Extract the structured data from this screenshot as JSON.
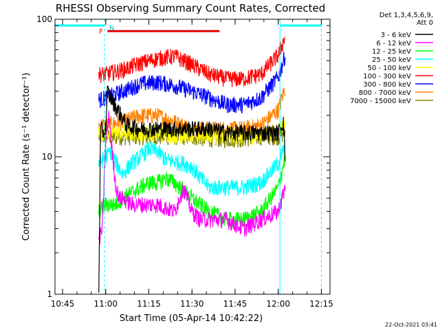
{
  "chart_data": {
    "type": "line",
    "title": "RHESSI Observing Summary Count Rates, Corrected",
    "xlabel": "Start Time (05-Apr-14 10:42:22)",
    "ylabel": "Corrected Count Rate (s⁻¹ detector⁻¹)",
    "yscale": "log",
    "xlim": [
      10.7061,
      12.3
    ],
    "ylim": [
      1,
      100
    ],
    "x_ticks": [
      {
        "v": 10.75,
        "label": "10:45"
      },
      {
        "v": 11.0,
        "label": "11:00"
      },
      {
        "v": 11.25,
        "label": "11:15"
      },
      {
        "v": 11.5,
        "label": "11:30"
      },
      {
        "v": 11.75,
        "label": "11:45"
      },
      {
        "v": 12.0,
        "label": "12:00"
      },
      {
        "v": 12.25,
        "label": "12:15"
      }
    ],
    "y_ticks": [
      {
        "v": 1,
        "label": "1"
      },
      {
        "v": 10,
        "label": "10"
      },
      {
        "v": 100,
        "label": "100"
      }
    ],
    "legend_header": [
      "Det 1,3,4,5,6,9,",
      "Att 0"
    ],
    "legend_position": "right",
    "series": [
      {
        "name": "3 - 6 keV",
        "color": "#000000",
        "x": [
          10.96,
          10.97,
          10.99,
          11.0,
          11.01,
          11.03,
          11.05,
          11.08,
          11.12,
          11.2,
          11.3,
          11.4,
          11.5,
          11.6,
          11.7,
          11.8,
          11.9,
          11.95,
          12.0,
          12.03,
          12.04
        ],
        "y": [
          1,
          16,
          15,
          16,
          30,
          27,
          24,
          21,
          17,
          16,
          16,
          16,
          16,
          16,
          15,
          15,
          15,
          15,
          15,
          18,
          10
        ]
      },
      {
        "name": "6 - 12 keV",
        "color": "#ff00ff",
        "x": [
          10.96,
          10.98,
          11.0,
          11.02,
          11.04,
          11.06,
          11.08,
          11.1,
          11.15,
          11.2,
          11.3,
          11.4,
          11.45,
          11.5,
          11.55,
          11.6,
          11.7,
          11.8,
          11.9,
          12.0,
          12.04
        ],
        "y": [
          2.5,
          3,
          13,
          20,
          10,
          6,
          5,
          5,
          4.5,
          4.5,
          4.5,
          4,
          6,
          4,
          3.5,
          3.5,
          3.5,
          3,
          3.5,
          4,
          6
        ]
      },
      {
        "name": "12 - 25 keV",
        "color": "#00ff00",
        "x": [
          10.96,
          11.0,
          11.05,
          11.1,
          11.15,
          11.2,
          11.25,
          11.3,
          11.35,
          11.4,
          11.5,
          11.6,
          11.7,
          11.8,
          11.9,
          12.0,
          12.04
        ],
        "y": [
          4,
          4.5,
          4.5,
          5,
          5.5,
          6,
          6.5,
          6.5,
          7,
          6.5,
          5,
          4,
          3.5,
          3.5,
          4,
          6,
          10
        ]
      },
      {
        "name": "25 - 50 keV",
        "color": "#00ffff",
        "x": [
          10.96,
          11.0,
          11.03,
          11.06,
          11.1,
          11.15,
          11.2,
          11.25,
          11.3,
          11.35,
          11.45,
          11.5,
          11.55,
          11.6,
          11.7,
          11.8,
          11.9,
          12.0,
          12.04
        ],
        "y": [
          9,
          10,
          11,
          9,
          7.5,
          9,
          10,
          11.5,
          11,
          9.5,
          9,
          8.5,
          7,
          6,
          6,
          6,
          6.5,
          9,
          12
        ]
      },
      {
        "name": "50 - 100 keV",
        "color": "#ffff00",
        "x": [
          10.96,
          11.0,
          11.1,
          11.2,
          11.3,
          11.4,
          11.5,
          11.6,
          11.7,
          11.8,
          11.9,
          12.0,
          12.04
        ],
        "y": [
          15,
          15,
          15,
          15,
          15,
          14.5,
          14.5,
          14.5,
          14.5,
          14,
          14.5,
          15.5,
          18
        ]
      },
      {
        "name": "100 - 300 keV",
        "color": "#ff0000",
        "x": [
          10.96,
          11.0,
          11.1,
          11.2,
          11.3,
          11.4,
          11.5,
          11.6,
          11.7,
          11.8,
          11.9,
          12.0,
          12.04
        ],
        "y": [
          40,
          40,
          43,
          48,
          52,
          54,
          47,
          40,
          37,
          37,
          40,
          55,
          75
        ]
      },
      {
        "name": "300 - 800 keV",
        "color": "#0000ff",
        "x": [
          10.96,
          11.0,
          11.1,
          11.2,
          11.3,
          11.4,
          11.5,
          11.6,
          11.7,
          11.8,
          11.9,
          12.0,
          12.04
        ],
        "y": [
          26,
          27,
          30,
          34,
          35,
          33,
          30,
          27,
          24,
          24,
          27,
          38,
          55
        ]
      },
      {
        "name": "800 - 7000 keV",
        "color": "#ff8000",
        "x": [
          10.96,
          11.0,
          11.1,
          11.2,
          11.3,
          11.4,
          11.5,
          11.6,
          11.7,
          11.8,
          11.9,
          12.0,
          12.04
        ],
        "y": [
          17,
          17,
          18,
          20,
          20,
          18,
          16,
          16,
          16,
          16,
          17,
          22,
          32
        ]
      },
      {
        "name": "7000 - 15000 keV",
        "color": "#808000",
        "x": [
          10.96,
          11.0,
          11.1,
          11.2,
          11.3,
          11.4,
          11.5,
          11.6,
          11.7,
          11.8,
          11.9,
          12.0,
          12.04
        ],
        "y": [
          14,
          14,
          14,
          14,
          14,
          14,
          14,
          13.5,
          13.5,
          13.5,
          14,
          14,
          15
        ]
      }
    ],
    "annotations": {
      "orbit_night_segments": [
        {
          "x": [
            10.7061,
            10.993
          ],
          "y": 90,
          "color": "#00ffff"
        },
        {
          "x": [
            12.01,
            12.25
          ],
          "y": 90,
          "color": "#00ffff"
        }
      ],
      "vertical_dashed_lines": [
        {
          "x": 10.993,
          "color": "#00ffff"
        },
        {
          "x": 12.25,
          "color": "#00ffff"
        }
      ],
      "vertical_solid_lines": [
        {
          "x": 12.01,
          "color": "#00ffff"
        }
      ],
      "flare_bar": {
        "label": "F",
        "x": [
          11.01,
          11.66
        ],
        "y": 82,
        "color": "#e00000"
      },
      "saa_marker": {
        "label": "N",
        "x": 11.02,
        "color": "#00c8c8"
      }
    }
  },
  "footer_timestamp": "22-Oct-2021 03:41"
}
